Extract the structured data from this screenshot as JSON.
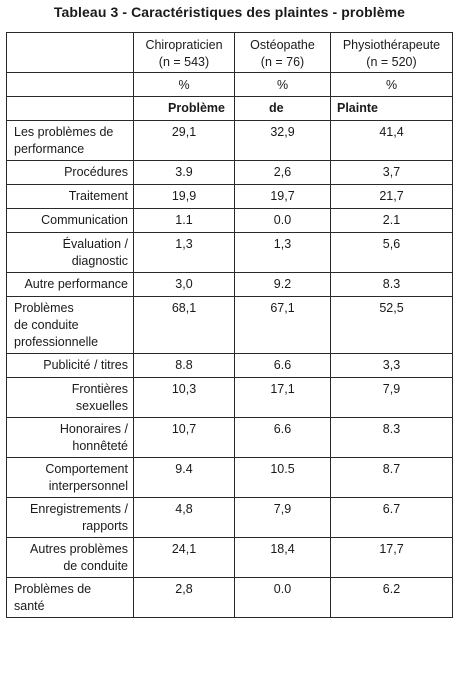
{
  "title": "Tableau 3 - Caractéristiques des plaintes - problème",
  "columns": [
    {
      "name_line1": "Chiropraticien",
      "name_line2": "(n = 543)"
    },
    {
      "name_line1": "Ostéopathe",
      "name_line2": "(n = 76)"
    },
    {
      "name_line1": "Physiothérapeute",
      "name_line2": "(n = 520)"
    }
  ],
  "percent_row": [
    "%",
    "%",
    "%"
  ],
  "subheader_row": [
    "Problème",
    "de",
    "Plainte"
  ],
  "rows": [
    {
      "type": "main",
      "label_lines": [
        "Les problèmes de",
        "performance"
      ],
      "values": [
        "29,1",
        "32,9",
        "41,4"
      ]
    },
    {
      "type": "sub",
      "label_lines": [
        "Procédures"
      ],
      "values": [
        "3.9",
        "2,6",
        "3,7"
      ]
    },
    {
      "type": "sub",
      "label_lines": [
        "Traitement"
      ],
      "values": [
        "19,9",
        "19,7",
        "21,7"
      ]
    },
    {
      "type": "sub",
      "label_lines": [
        "Communication"
      ],
      "values": [
        "1.1",
        "0.0",
        "2.1"
      ]
    },
    {
      "type": "sub",
      "label_lines": [
        "Évaluation /",
        "diagnostic"
      ],
      "values": [
        "1,3",
        "1,3",
        "5,6"
      ]
    },
    {
      "type": "sub",
      "label_lines": [
        "Autre performance"
      ],
      "values": [
        "3,0",
        "9.2",
        "8.3"
      ]
    },
    {
      "type": "main",
      "label_lines": [
        "Problèmes",
        "de conduite",
        "professionnelle"
      ],
      "values": [
        "68,1",
        "67,1",
        "52,5"
      ]
    },
    {
      "type": "sub",
      "label_lines": [
        "Publicité / titres"
      ],
      "values": [
        "8.8",
        "6.6",
        "3,3"
      ]
    },
    {
      "type": "sub",
      "label_lines": [
        "Frontières",
        "sexuelles"
      ],
      "values": [
        "10,3",
        "17,1",
        "7,9"
      ]
    },
    {
      "type": "sub",
      "label_lines": [
        "Honoraires /",
        "honnêteté"
      ],
      "values": [
        "10,7",
        "6.6",
        "8.3"
      ]
    },
    {
      "type": "sub",
      "label_lines": [
        "Comportement",
        "interpersonnel"
      ],
      "values": [
        "9.4",
        "10.5",
        "8.7"
      ]
    },
    {
      "type": "sub",
      "label_lines": [
        "Enregistrements /",
        "rapports"
      ],
      "values": [
        "4,8",
        "7,9",
        "6.7"
      ]
    },
    {
      "type": "sub",
      "label_lines": [
        "Autres problèmes",
        "de conduite"
      ],
      "values": [
        "24,1",
        "18,4",
        "17,7"
      ]
    },
    {
      "type": "main",
      "label_lines": [
        "Problèmes de",
        "santé"
      ],
      "values": [
        "2,8",
        "0.0",
        "6.2"
      ]
    }
  ]
}
